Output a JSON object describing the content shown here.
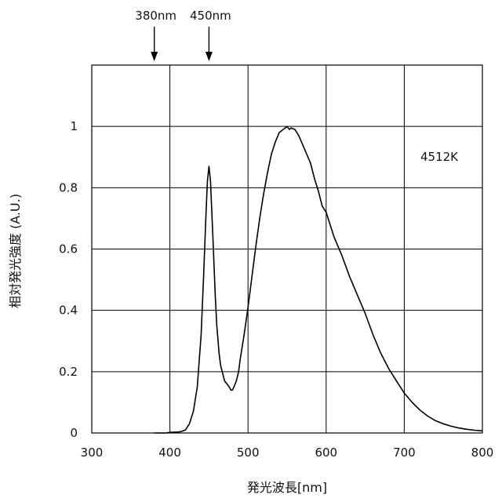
{
  "chart_data": {
    "type": "line",
    "xlabel": "発光波長[nm]",
    "ylabel": "相対発光強度 (A.U.)",
    "xlim": [
      300,
      800
    ],
    "ylim": [
      0,
      1.2
    ],
    "x_ticks": [
      "300",
      "400",
      "500",
      "600",
      "700",
      "800"
    ],
    "y_ticks": [
      "0",
      "0.2",
      "0.4",
      "0.6",
      "0.8",
      "1"
    ],
    "x_tick_values": [
      300,
      400,
      500,
      600,
      700,
      800
    ],
    "y_tick_values": [
      0,
      0.2,
      0.4,
      0.6,
      0.8,
      1.0
    ],
    "grid": true,
    "label": "4512K",
    "markers": [
      {
        "label": "380nm",
        "x": 380
      },
      {
        "label": "450nm",
        "x": 450
      }
    ],
    "series": [
      {
        "x": [
          380,
          395,
          400,
          410,
          415,
          420,
          425,
          430,
          435,
          440,
          443,
          446,
          448,
          450,
          452,
          455,
          458,
          460,
          463,
          465,
          468,
          470,
          473,
          476,
          478,
          480,
          482,
          485,
          488,
          490,
          495,
          500,
          505,
          510,
          515,
          520,
          525,
          530,
          535,
          540,
          545,
          550,
          553,
          555,
          560,
          565,
          570,
          575,
          580,
          585,
          590,
          595,
          600,
          605,
          610,
          620,
          630,
          640,
          650,
          660,
          670,
          680,
          690,
          700,
          710,
          720,
          730,
          740,
          750,
          760,
          770,
          780,
          790,
          800
        ],
        "y": [
          0.0,
          0.0,
          0.002,
          0.003,
          0.005,
          0.01,
          0.03,
          0.07,
          0.15,
          0.32,
          0.5,
          0.7,
          0.82,
          0.87,
          0.82,
          0.64,
          0.45,
          0.35,
          0.26,
          0.22,
          0.19,
          0.17,
          0.16,
          0.15,
          0.14,
          0.14,
          0.15,
          0.17,
          0.2,
          0.24,
          0.32,
          0.41,
          0.51,
          0.61,
          0.7,
          0.78,
          0.85,
          0.91,
          0.95,
          0.98,
          0.99,
          1.0,
          0.99,
          0.995,
          0.99,
          0.97,
          0.94,
          0.91,
          0.88,
          0.83,
          0.79,
          0.74,
          0.72,
          0.68,
          0.64,
          0.58,
          0.51,
          0.45,
          0.39,
          0.32,
          0.26,
          0.21,
          0.17,
          0.13,
          0.1,
          0.075,
          0.055,
          0.04,
          0.03,
          0.022,
          0.016,
          0.012,
          0.009,
          0.007
        ]
      }
    ]
  }
}
